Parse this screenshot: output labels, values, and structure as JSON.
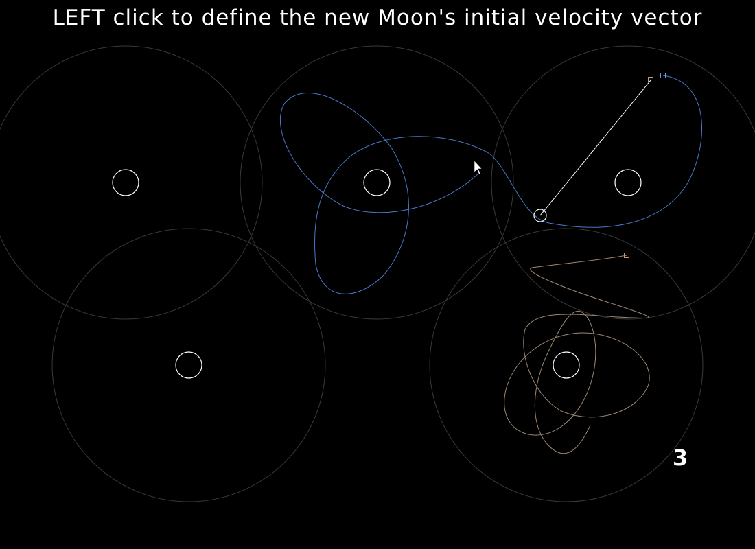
{
  "instruction": "LEFT click to define the new Moon's initial velocity vector",
  "moon_count": "3",
  "colors": {
    "background": "#000000",
    "planet": "#ffffff",
    "influence_ring": "#3a3a3a",
    "orbit_blue": "#4a78c8",
    "orbit_tan": "#a08870",
    "velocity_vector": "#ffffff",
    "marker_tan": "#c89870",
    "marker_blue": "#6a9ae0"
  },
  "icons": {
    "cursor": "arrow-pointer-icon"
  }
}
